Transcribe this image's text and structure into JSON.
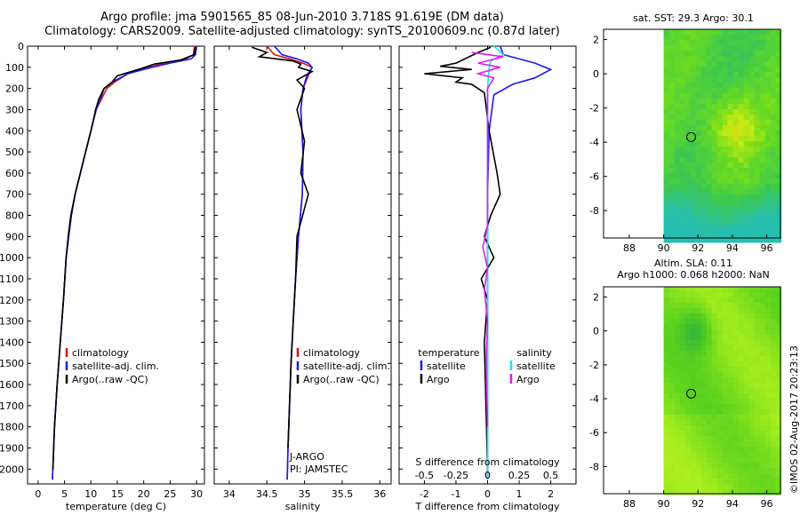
{
  "title": {
    "line1": "Argo profile: jma 5901565_85 08-Jun-2010 3.718S 91.619E (DM data)",
    "line2": "Climatology: CARS2009. Satellite-adjusted climatology: synTS_20100609.nc (0.87d later)"
  },
  "colors": {
    "climatology": "#e01010",
    "satellite": "#1a1af0",
    "argo": "#000000",
    "cyan": "#19e6f0",
    "magenta": "#e619e6"
  },
  "depth_axis": {
    "ticks": [
      "0",
      "100",
      "200",
      "300",
      "400",
      "500",
      "600",
      "700",
      "800",
      "900",
      "1000",
      "1100",
      "1200",
      "1300",
      "1400",
      "1500",
      "1600",
      "1700",
      "1800",
      "1900",
      "2000"
    ],
    "range": [
      0,
      2070
    ]
  },
  "chart_data": [
    {
      "type": "line",
      "name": "temperature-profile",
      "xlabel": "temperature (deg C)",
      "xlim": [
        -2,
        31.5
      ],
      "xticks": [
        "0",
        "5",
        "10",
        "15",
        "20",
        "25",
        "30"
      ],
      "xtick_values": [
        0,
        5,
        10,
        15,
        20,
        25,
        30
      ],
      "ylim": [
        0,
        2070
      ],
      "legend": [
        "climatology",
        "satellite-adj. clim.",
        "Argo(..raw -QC)"
      ],
      "series": [
        {
          "name": "climatology",
          "color": "#e01010",
          "points": [
            [
              29.6,
              0
            ],
            [
              29.4,
              40
            ],
            [
              28,
              60
            ],
            [
              24,
              80
            ],
            [
              21,
              100
            ],
            [
              17,
              130
            ],
            [
              14.5,
              170
            ],
            [
              13,
              200
            ],
            [
              12,
              250
            ],
            [
              11,
              300
            ],
            [
              10,
              400
            ],
            [
              9,
              500
            ],
            [
              8,
              600
            ],
            [
              7,
              700
            ],
            [
              6.3,
              800
            ],
            [
              5.8,
              900
            ],
            [
              5.3,
              1000
            ],
            [
              4.8,
              1200
            ],
            [
              4.2,
              1400
            ],
            [
              3.6,
              1600
            ],
            [
              3.1,
              1800
            ],
            [
              2.8,
              2000
            ],
            [
              2.7,
              2050
            ]
          ]
        },
        {
          "name": "satellite-adj. clim.",
          "color": "#1a1af0",
          "points": [
            [
              30.0,
              0
            ],
            [
              29.8,
              40
            ],
            [
              29,
              60
            ],
            [
              25,
              80
            ],
            [
              21.5,
              100
            ],
            [
              17,
              130
            ],
            [
              14,
              170
            ],
            [
              12.5,
              200
            ],
            [
              11.8,
              250
            ],
            [
              11,
              300
            ],
            [
              10,
              400
            ],
            [
              9,
              500
            ],
            [
              8,
              600
            ],
            [
              7,
              700
            ],
            [
              6.3,
              800
            ],
            [
              5.8,
              900
            ],
            [
              5.3,
              1000
            ],
            [
              4.8,
              1200
            ],
            [
              4.2,
              1400
            ],
            [
              3.6,
              1600
            ],
            [
              3.1,
              1800
            ],
            [
              2.8,
              2000
            ],
            [
              2.7,
              2050
            ]
          ]
        },
        {
          "name": "Argo(..raw -QC)",
          "color": "#000000",
          "points": [
            [
              29.8,
              5
            ],
            [
              29.6,
              40
            ],
            [
              27,
              65
            ],
            [
              22,
              85
            ],
            [
              19,
              110
            ],
            [
              15,
              140
            ],
            [
              14,
              170
            ],
            [
              12.5,
              200
            ],
            [
              11.5,
              250
            ],
            [
              10.9,
              300
            ],
            [
              10,
              400
            ],
            [
              9,
              500
            ],
            [
              8,
              600
            ],
            [
              7,
              700
            ],
            [
              6.2,
              800
            ],
            [
              5.7,
              900
            ],
            [
              5.3,
              1000
            ],
            [
              4.8,
              1200
            ],
            [
              4.2,
              1400
            ],
            [
              3.6,
              1600
            ],
            [
              3.1,
              1800
            ],
            [
              2.8,
              2000
            ]
          ]
        }
      ]
    },
    {
      "type": "line",
      "name": "salinity-profile",
      "xlabel": "salinity",
      "xlim": [
        33.8,
        36.15
      ],
      "xticks": [
        "34",
        "34.5",
        "35",
        "35.5",
        "36"
      ],
      "xtick_values": [
        34,
        34.5,
        35,
        35.5,
        36
      ],
      "ylim": [
        0,
        2070
      ],
      "legend": [
        "climatology",
        "satellite-adj. clim.",
        "Argo(..raw -QC)"
      ],
      "annotations": [
        "J-ARGO",
        "PI: JAMSTEC"
      ],
      "series": [
        {
          "name": "climatology",
          "color": "#e01010",
          "points": [
            [
              34.5,
              0
            ],
            [
              34.6,
              40
            ],
            [
              34.8,
              60
            ],
            [
              34.98,
              80
            ],
            [
              35.1,
              100
            ],
            [
              35.05,
              140
            ],
            [
              34.98,
              200
            ],
            [
              34.95,
              300
            ],
            [
              34.98,
              500
            ],
            [
              34.97,
              700
            ],
            [
              34.92,
              900
            ],
            [
              34.88,
              1100
            ],
            [
              34.85,
              1300
            ],
            [
              34.82,
              1500
            ],
            [
              34.8,
              1700
            ],
            [
              34.78,
              1900
            ],
            [
              34.77,
              2050
            ]
          ]
        },
        {
          "name": "satellite-adj. clim.",
          "color": "#1a1af0",
          "points": [
            [
              34.6,
              0
            ],
            [
              34.7,
              40
            ],
            [
              34.9,
              60
            ],
            [
              35.05,
              80
            ],
            [
              35.1,
              100
            ],
            [
              35.03,
              140
            ],
            [
              34.98,
              200
            ],
            [
              34.95,
              300
            ],
            [
              34.98,
              500
            ],
            [
              34.97,
              700
            ],
            [
              34.92,
              900
            ],
            [
              34.88,
              1100
            ],
            [
              34.85,
              1300
            ],
            [
              34.82,
              1500
            ],
            [
              34.8,
              1700
            ],
            [
              34.78,
              1900
            ],
            [
              34.77,
              2050
            ]
          ]
        },
        {
          "name": "Argo(..raw -QC)",
          "color": "#000000",
          "points": [
            [
              34.3,
              5
            ],
            [
              34.5,
              30
            ],
            [
              34.4,
              50
            ],
            [
              34.85,
              70
            ],
            [
              34.95,
              85
            ],
            [
              34.92,
              100
            ],
            [
              35.1,
              120
            ],
            [
              34.9,
              160
            ],
            [
              35.0,
              200
            ],
            [
              34.9,
              300
            ],
            [
              35.0,
              450
            ],
            [
              34.95,
              600
            ],
            [
              35.05,
              700
            ],
            [
              34.9,
              900
            ],
            [
              34.88,
              1100
            ],
            [
              34.85,
              1300
            ],
            [
              34.82,
              1500
            ],
            [
              34.8,
              1700
            ],
            [
              34.78,
              1900
            ]
          ]
        }
      ]
    },
    {
      "type": "line",
      "name": "difference-profile",
      "xlabel": "T difference from climatology",
      "xlim": [
        -2.8,
        2.8
      ],
      "xticks": [
        "-2",
        "-1",
        "0",
        "1",
        "2"
      ],
      "xtick_values": [
        -2,
        -1,
        0,
        1,
        2
      ],
      "top_label": "S difference from climatology",
      "top_ticks": [
        "-0.5",
        "-0.25",
        "0",
        "0.25",
        "0.5"
      ],
      "top_tick_values": [
        -0.5,
        -0.25,
        0,
        0.25,
        0.5
      ],
      "ylim": [
        0,
        2070
      ],
      "legend_titles": [
        "temperature",
        "salinity"
      ],
      "legend": [
        "satellite",
        "Argo",
        "satellite",
        "Argo"
      ],
      "series": [
        {
          "name": "temperature satellite",
          "color": "#1a1af0",
          "points": [
            [
              0.4,
              0
            ],
            [
              0.5,
              40
            ],
            [
              1.5,
              80
            ],
            [
              2.0,
              110
            ],
            [
              1.5,
              150
            ],
            [
              0.8,
              180
            ],
            [
              0.2,
              230
            ],
            [
              0.05,
              400
            ],
            [
              0,
              700
            ],
            [
              0,
              2050
            ]
          ]
        },
        {
          "name": "temperature Argo",
          "color": "#000000",
          "points": [
            [
              0.1,
              5
            ],
            [
              -0.3,
              30
            ],
            [
              -1.0,
              80
            ],
            [
              -1.5,
              95
            ],
            [
              -0.5,
              110
            ],
            [
              -2.0,
              130
            ],
            [
              -0.8,
              150
            ],
            [
              -1.0,
              170
            ],
            [
              -0.5,
              180
            ],
            [
              -0.1,
              220
            ],
            [
              0.05,
              400
            ],
            [
              0.3,
              600
            ],
            [
              0.4,
              700
            ],
            [
              0.1,
              800
            ],
            [
              -0.1,
              900
            ],
            [
              0.2,
              1000
            ],
            [
              -0.2,
              1100
            ],
            [
              0,
              1200
            ],
            [
              -0.1,
              1400
            ],
            [
              0,
              2000
            ]
          ]
        },
        {
          "name": "salinity satellite",
          "color": "#19e6f0",
          "points": [
            [
              0.2,
              0
            ],
            [
              0.5,
              40
            ],
            [
              0.1,
              70
            ],
            [
              0.05,
              100
            ],
            [
              0,
              200
            ],
            [
              0,
              2050
            ]
          ]
        },
        {
          "name": "salinity Argo",
          "color": "#e619e6",
          "points": [
            [
              -0.5,
              30
            ],
            [
              0.5,
              50
            ],
            [
              -0.3,
              80
            ],
            [
              0.4,
              100
            ],
            [
              -0.3,
              130
            ],
            [
              0.2,
              150
            ],
            [
              0,
              200
            ],
            [
              0,
              850
            ],
            [
              -0.15,
              950
            ],
            [
              0,
              1050
            ],
            [
              -0.1,
              1150
            ],
            [
              0,
              1300
            ],
            [
              -0.05,
              1500
            ],
            [
              0,
              1800
            ]
          ]
        }
      ]
    },
    {
      "type": "heatmap",
      "name": "sst-map",
      "title": "sat. SST: 29.3  Argo: 30.1",
      "xlim": [
        86.5,
        96.8
      ],
      "ylim": [
        -9.6,
        2.6
      ],
      "xticks": [
        "88",
        "90",
        "92",
        "94",
        "96"
      ],
      "xtick_values": [
        88,
        90,
        92,
        94,
        96
      ],
      "yticks": [
        "2",
        "0",
        "-2",
        "-4",
        "-6",
        "-8"
      ],
      "ytick_values": [
        2,
        0,
        -2,
        -4,
        -6,
        -8
      ],
      "data_region": [
        90,
        96.8,
        -9.6,
        2.6
      ],
      "argo_marker": [
        91.6,
        -3.7
      ]
    },
    {
      "type": "heatmap",
      "name": "sla-map",
      "title": "Altim. SLA: 0.11",
      "subtitle": "Argo h1000: 0.068  h2000: NaN",
      "xlim": [
        86.5,
        96.8
      ],
      "ylim": [
        -9.6,
        2.6
      ],
      "xticks": [
        "88",
        "90",
        "92",
        "94",
        "96"
      ],
      "xtick_values": [
        88,
        90,
        92,
        94,
        96
      ],
      "yticks": [
        "2",
        "0",
        "-2",
        "-4",
        "-6",
        "-8"
      ],
      "ytick_values": [
        2,
        0,
        -2,
        -4,
        -6,
        -8
      ],
      "data_region": [
        90,
        96.8,
        -9.6,
        2.6
      ],
      "argo_marker": [
        91.6,
        -3.7
      ]
    }
  ],
  "credit": "©IMOS 02-Aug-2017 20:23:13"
}
